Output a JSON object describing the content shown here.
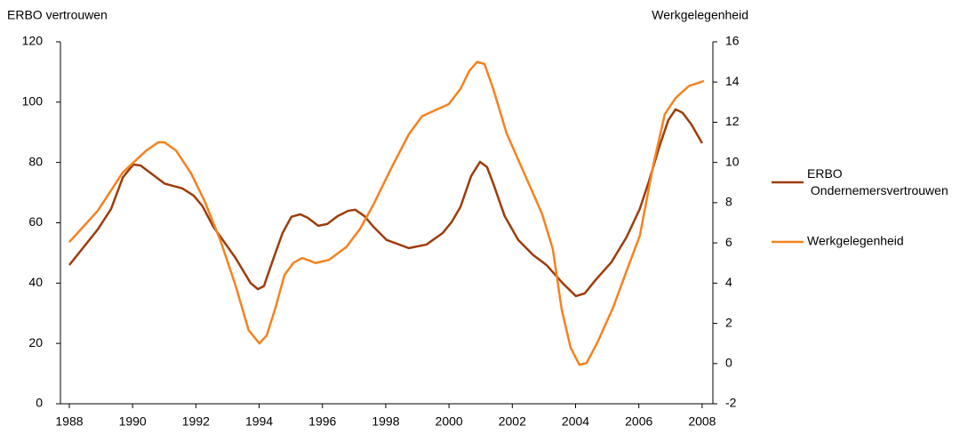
{
  "chart_data": {
    "type": "line",
    "y_label": "ERBO vertrouwen",
    "y2_label": "Werkgelegenheid",
    "xlim": [
      1987.72,
      2008.34
    ],
    "xticks": [
      1988,
      1990,
      1992,
      1994,
      1996,
      1998,
      2000,
      2002,
      2004,
      2006,
      2008
    ],
    "ylim": [
      0,
      120
    ],
    "yticks": [
      0,
      20,
      40,
      60,
      80,
      100,
      120
    ],
    "y2lim": [
      -2,
      16
    ],
    "y2ticks": [
      -2,
      0,
      2,
      4,
      6,
      8,
      10,
      12,
      14,
      16
    ],
    "grid": false,
    "legend": "right",
    "series": [
      {
        "name": "ERBO Ondernemersvertrouwen",
        "color": "#9C3D0C",
        "axis": "y",
        "x": [
          1988.0,
          1988.9,
          1989.32,
          1989.69,
          1990.02,
          1990.25,
          1991.01,
          1991.57,
          1991.93,
          1992.21,
          1992.55,
          1993.25,
          1993.73,
          1993.96,
          1994.15,
          1994.46,
          1994.74,
          1995.02,
          1995.3,
          1995.53,
          1995.87,
          1996.15,
          1996.48,
          1996.82,
          1997.04,
          1997.33,
          1997.61,
          1998.03,
          1998.73,
          1999.29,
          1999.8,
          2000.08,
          2000.36,
          2000.7,
          2000.98,
          2001.2,
          2001.4,
          2001.76,
          2002.19,
          2002.66,
          2003.08,
          2003.59,
          2004.01,
          2004.29,
          2004.63,
          2005.13,
          2005.61,
          2006.03,
          2006.31,
          2006.65,
          2006.93,
          2007.16,
          2007.38,
          2007.66,
          2008.0
        ],
        "values": [
          46,
          57.8,
          64.6,
          75,
          79.3,
          79,
          73,
          71.4,
          69,
          65.5,
          58.7,
          48.4,
          40,
          38,
          39,
          48.4,
          56.6,
          62,
          62.8,
          61.7,
          59,
          59.6,
          62.2,
          64,
          64.3,
          62.2,
          58.7,
          54.3,
          51.6,
          52.8,
          56.6,
          60.2,
          65.2,
          75.5,
          80.2,
          78.5,
          73,
          62.2,
          54.3,
          49.3,
          46,
          40,
          35.7,
          36.6,
          41,
          46.9,
          55.2,
          64.6,
          73.5,
          85.3,
          94,
          97.6,
          96.5,
          92.6,
          86.4
        ]
      },
      {
        "name": "Werkgelegenheid",
        "color": "#F5821F",
        "axis": "y2",
        "x": [
          1988.0,
          1988.9,
          1989.69,
          1990.44,
          1990.81,
          1991.01,
          1991.37,
          1991.85,
          1992.27,
          1992.78,
          1993.25,
          1993.67,
          1994.01,
          1994.24,
          1994.52,
          1994.8,
          1995.08,
          1995.36,
          1995.78,
          1996.2,
          1996.76,
          1997.19,
          1997.61,
          1998.17,
          1998.73,
          1999.15,
          1999.57,
          1999.99,
          2000.36,
          2000.64,
          2000.89,
          2001.12,
          2001.4,
          2001.82,
          2002.38,
          2002.94,
          2003.28,
          2003.56,
          2003.84,
          2004.12,
          2004.35,
          2004.69,
          2005.19,
          2005.61,
          2006.03,
          2006.46,
          2006.82,
          2007.16,
          2007.58,
          2008.06
        ],
        "values": [
          6.04,
          7.6,
          9.5,
          10.6,
          11.0,
          11.0,
          10.6,
          9.45,
          8.1,
          6.1,
          3.9,
          1.65,
          1.0,
          1.4,
          2.8,
          4.4,
          5.0,
          5.25,
          5.0,
          5.15,
          5.8,
          6.7,
          7.9,
          9.7,
          11.4,
          12.3,
          12.6,
          12.9,
          13.65,
          14.55,
          15.0,
          14.9,
          13.65,
          11.45,
          9.45,
          7.45,
          5.7,
          2.7,
          0.8,
          -0.06,
          0.03,
          1.05,
          2.8,
          4.6,
          6.35,
          9.9,
          12.4,
          13.2,
          13.8,
          14.05
        ]
      }
    ]
  }
}
